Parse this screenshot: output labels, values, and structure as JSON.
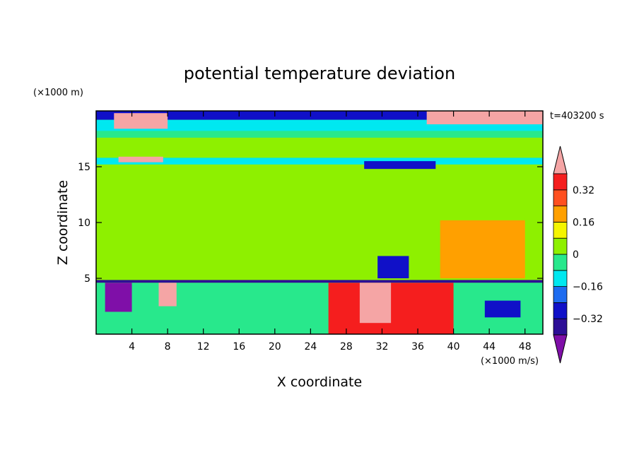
{
  "chart_data": {
    "type": "heatmap",
    "title": "potential temperature deviation",
    "xlabel": "X coordinate",
    "ylabel": "Z coordinate",
    "x_unit": "(×1000 m/s)",
    "y_unit": "(×1000 m)",
    "time_label": "t=403200 s",
    "xlim": [
      0,
      50
    ],
    "ylim": [
      0,
      20
    ],
    "x_ticks": [
      4,
      8,
      12,
      16,
      20,
      24,
      28,
      32,
      36,
      40,
      44,
      48
    ],
    "y_ticks": [
      5,
      10,
      15
    ],
    "colorbar": {
      "levels": [
        -0.4,
        -0.32,
        -0.24,
        -0.16,
        -0.08,
        0,
        0.08,
        0.16,
        0.24,
        0.32,
        0.4
      ],
      "tick_labels": [
        "0.32",
        "0.16",
        "0",
        "−0.16",
        "−0.32"
      ],
      "tick_values": [
        0.32,
        0.16,
        0,
        -0.16,
        -0.32
      ],
      "colors": [
        "#7f0fa8",
        "#2d0f96",
        "#1010c8",
        "#1e6cf0",
        "#00e8f0",
        "#28e88c",
        "#8ef000",
        "#f5f500",
        "#ffa000",
        "#ff5020",
        "#f51e1e",
        "#f5a5a5"
      ],
      "extend": "both"
    },
    "regions": [
      {
        "x": [
          0,
          50
        ],
        "z": [
          0,
          20
        ],
        "value": 0.02,
        "note": "background"
      },
      {
        "x": [
          0,
          50
        ],
        "z": [
          19.2,
          20
        ],
        "value": -0.32
      },
      {
        "x": [
          0,
          50
        ],
        "z": [
          18.2,
          19.2
        ],
        "value": -0.16
      },
      {
        "x": [
          0,
          50
        ],
        "z": [
          17.6,
          18.2
        ],
        "value": -0.05
      },
      {
        "x": [
          0,
          50
        ],
        "z": [
          15.2,
          15.8
        ],
        "value": -0.1
      },
      {
        "x": [
          30,
          38
        ],
        "z": [
          14.8,
          15.5
        ],
        "value": -0.25
      },
      {
        "x": [
          2,
          8
        ],
        "z": [
          18.4,
          19.8
        ],
        "value": 0.45
      },
      {
        "x": [
          37,
          50
        ],
        "z": [
          18.8,
          20
        ],
        "value": 0.45
      },
      {
        "x": [
          2.5,
          7.5
        ],
        "z": [
          15.4,
          15.9
        ],
        "value": 0.45
      },
      {
        "x": [
          0,
          50
        ],
        "z": [
          4.6,
          4.85
        ],
        "value": -0.35
      },
      {
        "x": [
          0,
          50
        ],
        "z": [
          0,
          4.6
        ],
        "value": -0.05
      },
      {
        "x": [
          26,
          40
        ],
        "z": [
          0,
          4.6
        ],
        "value": 0.36
      },
      {
        "x": [
          29.5,
          33
        ],
        "z": [
          1,
          4.6
        ],
        "value": 0.45
      },
      {
        "x": [
          38.5,
          48
        ],
        "z": [
          5,
          10.2
        ],
        "value": 0.18
      },
      {
        "x": [
          31.5,
          35
        ],
        "z": [
          5,
          7
        ],
        "value": -0.28
      },
      {
        "x": [
          1,
          4
        ],
        "z": [
          2,
          4.6
        ],
        "value": -0.42
      },
      {
        "x": [
          7,
          9
        ],
        "z": [
          2.5,
          4.6
        ],
        "value": 0.45
      },
      {
        "x": [
          43.5,
          47.5
        ],
        "z": [
          1.5,
          3
        ],
        "value": -0.3
      }
    ]
  }
}
